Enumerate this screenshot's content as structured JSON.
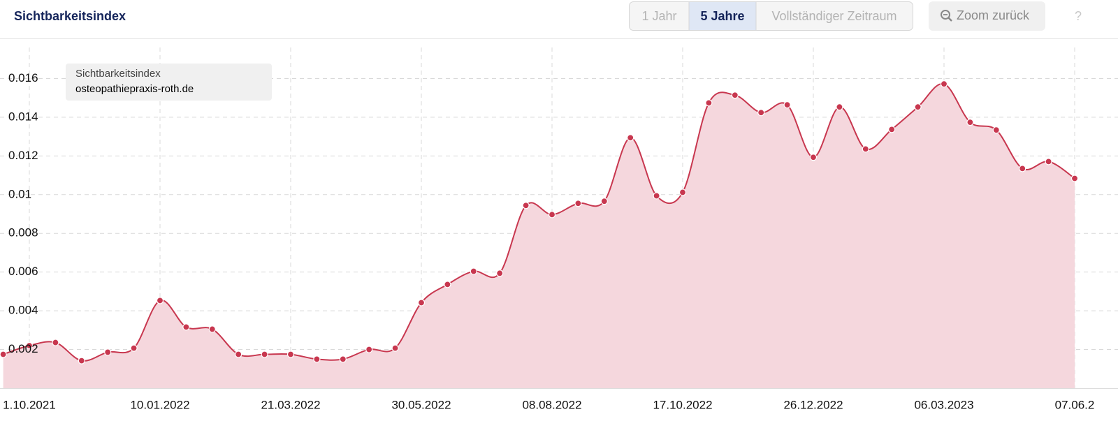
{
  "header": {
    "title": "Sichtbarkeitsindex",
    "buttons": [
      "1 Jahr",
      "5 Jahre",
      "Vollständiger Zeitraum"
    ],
    "active_button": 1,
    "zoom": "Zoom zurück",
    "help": "?"
  },
  "chart_data": {
    "type": "area",
    "tooltip_title": "Sichtbarkeitsindex",
    "categories": [
      null,
      "1.10.2021",
      null,
      null,
      null,
      null,
      "10.01.2022",
      null,
      null,
      null,
      null,
      "21.03.2022",
      null,
      null,
      null,
      null,
      "30.05.2022",
      null,
      null,
      null,
      null,
      "08.08.2022",
      null,
      null,
      null,
      null,
      "17.10.2022",
      null,
      null,
      null,
      null,
      "26.12.2022",
      null,
      null,
      null,
      null,
      "06.03.2023",
      null,
      null,
      null,
      null,
      "07.06.2"
    ],
    "series": [
      {
        "name": "osteopathiepraxis-roth.de",
        "color": "#c8374f",
        "fill": "#f5d7dd",
        "values": [
          0.00175,
          0.0022,
          0.00236,
          0.00142,
          0.00186,
          0.00207,
          0.00453,
          0.00316,
          0.00305,
          0.00175,
          0.00175,
          0.00175,
          0.0015,
          0.0015,
          0.002,
          0.00207,
          0.00442,
          0.00536,
          0.00604,
          0.00594,
          0.00944,
          0.00897,
          0.00955,
          0.00966,
          0.01294,
          0.00994,
          0.01012,
          0.01474,
          0.01514,
          0.01424,
          0.01464,
          0.01193,
          0.01453,
          0.01236,
          0.01337,
          0.01453,
          0.01572,
          0.01374,
          0.01334,
          0.01135,
          0.01171,
          0.01084
        ]
      }
    ],
    "ylim": [
      0,
      0.018
    ],
    "yticks": [
      0.002,
      0.004,
      0.006,
      0.008,
      0.01,
      0.012,
      0.014,
      0.016
    ],
    "grid": true
  }
}
